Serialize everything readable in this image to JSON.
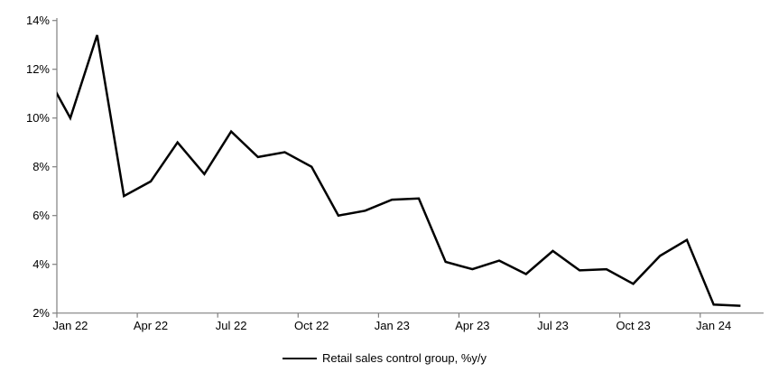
{
  "chart_data": {
    "type": "line",
    "title": "",
    "legend": {
      "position": "bottom-center",
      "entries": [
        "Retail sales control group, %y/y"
      ]
    },
    "series": [
      {
        "name": "Retail sales control group, %y/y",
        "color": "#000000",
        "x": [
          "Dec 21",
          "Jan 22",
          "Feb 22",
          "Mar 22",
          "Apr 22",
          "May 22",
          "Jun 22",
          "Jul 22",
          "Aug 22",
          "Sep 22",
          "Oct 22",
          "Nov 22",
          "Dec 22",
          "Jan 23",
          "Feb 23",
          "Mar 23",
          "Apr 23",
          "May 23",
          "Jun 23",
          "Jul 23",
          "Aug 23",
          "Sep 23",
          "Oct 23",
          "Nov 23",
          "Dec 23",
          "Jan 24",
          "Feb 24"
        ],
        "values": [
          12.0,
          10.0,
          13.4,
          6.8,
          7.4,
          9.0,
          7.7,
          9.45,
          8.4,
          8.6,
          8.0,
          6.0,
          6.2,
          6.65,
          6.7,
          4.1,
          3.8,
          4.15,
          3.6,
          4.55,
          3.75,
          3.8,
          3.2,
          4.35,
          5.0,
          2.35,
          2.3
        ],
        "first_point_clipped_at_left_axis": true
      }
    ],
    "x_axis": {
      "tick_labels": [
        "Jan 22",
        "Apr 22",
        "Jul 22",
        "Oct 22",
        "Jan 23",
        "Apr 23",
        "Jul 23",
        "Oct 23",
        "Jan 24"
      ],
      "tick_every_months": 3
    },
    "y_axis": {
      "tick_values": [
        2,
        4,
        6,
        8,
        10,
        12,
        14
      ],
      "tick_labels": [
        "2%",
        "4%",
        "6%",
        "8%",
        "10%",
        "12%",
        "14%"
      ],
      "min": 2,
      "max": 14,
      "unit": "%"
    },
    "grid": "off",
    "axis_color": "#808080",
    "text_color": "#000000",
    "line_width": 2.5
  }
}
